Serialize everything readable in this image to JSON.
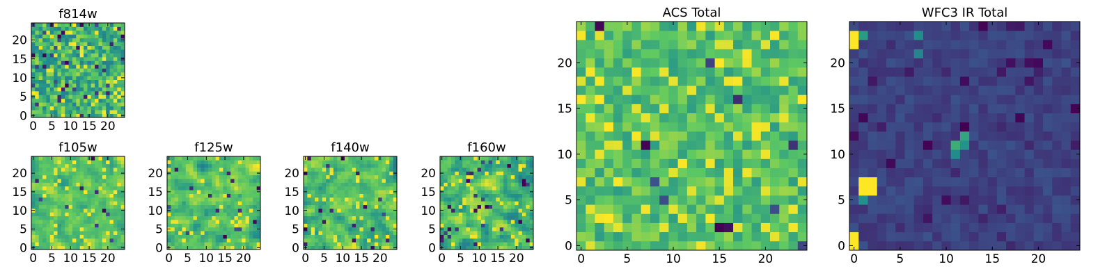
{
  "colormap": [
    "#440154",
    "#3b528b",
    "#21918c",
    "#5ec962",
    "#fde725"
  ],
  "axis_color": "#000000",
  "chart_data": [
    {
      "id": "f814w",
      "type": "heatmap",
      "title": "f814w",
      "grid_size": 25,
      "xlim": [
        -0.5,
        24.5
      ],
      "ylim": [
        -0.5,
        24.5
      ],
      "xticks": [
        0,
        5,
        10,
        15,
        20
      ],
      "yticks": [
        0,
        5,
        10,
        15,
        20
      ],
      "xlabel": "",
      "ylabel": "",
      "seed": 11,
      "texture": "noisy",
      "base": 0.65,
      "spread": 0.22,
      "dark_prob": 0.06,
      "bright_prob": 0.08
    },
    {
      "id": "f105w",
      "type": "heatmap",
      "title": "f105w",
      "grid_size": 25,
      "xlim": [
        -0.5,
        24.5
      ],
      "ylim": [
        -0.5,
        24.5
      ],
      "xticks": [
        0,
        5,
        10,
        15,
        20
      ],
      "yticks": [
        0,
        5,
        10,
        15,
        20
      ],
      "xlabel": "",
      "ylabel": "",
      "seed": 23,
      "texture": "smooth",
      "base": 0.72,
      "spread": 0.2,
      "dark_prob": 0.02,
      "bright_prob": 0.06
    },
    {
      "id": "f125w",
      "type": "heatmap",
      "title": "f125w",
      "grid_size": 25,
      "xlim": [
        -0.5,
        24.5
      ],
      "ylim": [
        -0.5,
        24.5
      ],
      "xticks": [
        0,
        5,
        10,
        15,
        20
      ],
      "yticks": [
        0,
        5,
        10,
        15,
        20
      ],
      "xlabel": "",
      "ylabel": "",
      "seed": 37,
      "texture": "smooth",
      "base": 0.7,
      "spread": 0.22,
      "dark_prob": 0.02,
      "bright_prob": 0.07
    },
    {
      "id": "f140w",
      "type": "heatmap",
      "title": "f140w",
      "grid_size": 25,
      "xlim": [
        -0.5,
        24.5
      ],
      "ylim": [
        -0.5,
        24.5
      ],
      "xticks": [
        0,
        5,
        10,
        15,
        20
      ],
      "yticks": [
        0,
        5,
        10,
        15,
        20
      ],
      "xlabel": "",
      "ylabel": "",
      "seed": 53,
      "texture": "smooth",
      "base": 0.7,
      "spread": 0.22,
      "dark_prob": 0.02,
      "bright_prob": 0.07
    },
    {
      "id": "f160w",
      "type": "heatmap",
      "title": "f160w",
      "grid_size": 25,
      "xlim": [
        -0.5,
        24.5
      ],
      "ylim": [
        -0.5,
        24.5
      ],
      "xticks": [
        0,
        5,
        10,
        15,
        20
      ],
      "yticks": [
        0,
        5,
        10,
        15,
        20
      ],
      "xlabel": "",
      "ylabel": "",
      "seed": 71,
      "texture": "smooth",
      "base": 0.66,
      "spread": 0.26,
      "dark_prob": 0.04,
      "bright_prob": 0.07
    },
    {
      "id": "acs",
      "type": "heatmap",
      "title": "ACS Total",
      "grid_size": 25,
      "xlim": [
        -0.5,
        24.5
      ],
      "ylim": [
        -0.5,
        24.5
      ],
      "xticks": [
        0,
        5,
        10,
        15,
        20
      ],
      "yticks": [
        0,
        5,
        10,
        15,
        20
      ],
      "xlabel": "",
      "ylabel": "",
      "seed": 97,
      "texture": "noisy",
      "base": 0.7,
      "spread": 0.15,
      "dark_prob": 0.02,
      "bright_prob": 0.1
    },
    {
      "id": "wfc3",
      "type": "heatmap",
      "title": "WFC3 IR Total",
      "grid_size": 25,
      "xlim": [
        -0.5,
        24.5
      ],
      "ylim": [
        -0.5,
        24.5
      ],
      "xticks": [
        0,
        5,
        10,
        15,
        20
      ],
      "yticks": [
        0,
        5,
        10,
        15,
        20
      ],
      "xlabel": "",
      "ylabel": "",
      "seed": 131,
      "texture": "noisy",
      "base": 0.2,
      "spread": 0.05,
      "dark_prob": 0.12,
      "bright_prob": 0.0,
      "bright_cells": [
        [
          0,
          0
        ],
        [
          0,
          1
        ],
        [
          0,
          22
        ],
        [
          0,
          23
        ],
        [
          1,
          6
        ],
        [
          1,
          7
        ],
        [
          2,
          6
        ],
        [
          2,
          7
        ]
      ],
      "mid_cells": [
        [
          12,
          11
        ],
        [
          12,
          12
        ],
        [
          11,
          11
        ],
        [
          11,
          10
        ],
        [
          1,
          5
        ],
        [
          7,
          23
        ],
        [
          1,
          23
        ],
        [
          7,
          21
        ]
      ]
    }
  ]
}
